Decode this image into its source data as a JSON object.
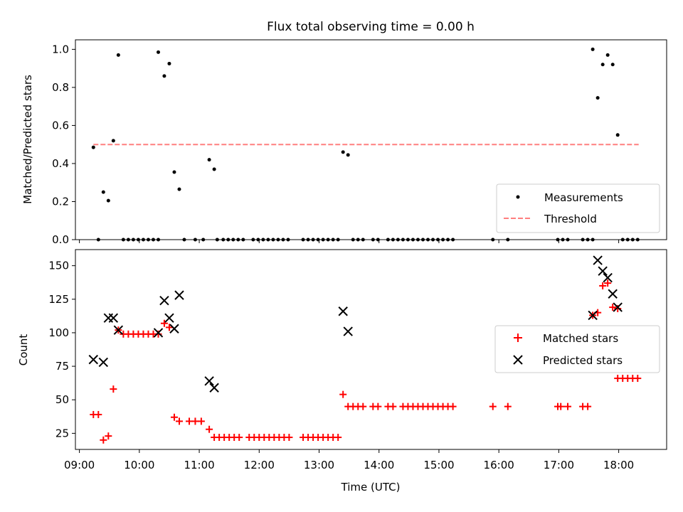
{
  "title": "Flux total observing time = 0.00 h",
  "chart_data": [
    {
      "type": "scatter",
      "xlabel": "",
      "ylabel": "Matched/Predicted stars",
      "xlim": [
        "08:56",
        "18:48"
      ],
      "ylim": [
        0,
        1.05
      ],
      "yticks": [
        "0.0",
        "0.2",
        "0.4",
        "0.6",
        "0.8",
        "1.0"
      ],
      "grid": false,
      "legend_position": "lower-right",
      "series": [
        {
          "name": "Measurements",
          "kind": "scatter",
          "color": "#000000",
          "points": [
            [
              "09:14",
              0.485
            ],
            [
              "09:19",
              0.0
            ],
            [
              "09:24",
              0.25
            ],
            [
              "09:29",
              0.205
            ],
            [
              "09:34",
              0.52
            ],
            [
              "09:39",
              0.97
            ],
            [
              "09:44",
              0.0
            ],
            [
              "09:49",
              0.0
            ],
            [
              "09:54",
              0.0
            ],
            [
              "09:59",
              0.0
            ],
            [
              "10:04",
              0.0
            ],
            [
              "10:09",
              0.0
            ],
            [
              "10:14",
              0.0
            ],
            [
              "10:19",
              0.0
            ],
            [
              "10:19",
              0.985
            ],
            [
              "10:25",
              0.86
            ],
            [
              "10:30",
              0.925
            ],
            [
              "10:35",
              0.355
            ],
            [
              "10:40",
              0.265
            ],
            [
              "10:45",
              0.0
            ],
            [
              "10:56",
              0.0
            ],
            [
              "11:04",
              0.0
            ],
            [
              "11:10",
              0.42
            ],
            [
              "11:15",
              0.37
            ],
            [
              "11:18",
              0.0
            ],
            [
              "11:24",
              0.0
            ],
            [
              "11:29",
              0.0
            ],
            [
              "11:34",
              0.0
            ],
            [
              "11:39",
              0.0
            ],
            [
              "11:44",
              0.0
            ],
            [
              "11:54",
              0.0
            ],
            [
              "11:59",
              0.0
            ],
            [
              "12:04",
              0.0
            ],
            [
              "12:09",
              0.0
            ],
            [
              "12:14",
              0.0
            ],
            [
              "12:19",
              0.0
            ],
            [
              "12:24",
              0.0
            ],
            [
              "12:29",
              0.0
            ],
            [
              "12:44",
              0.0
            ],
            [
              "12:49",
              0.0
            ],
            [
              "12:54",
              0.0
            ],
            [
              "12:59",
              0.0
            ],
            [
              "13:04",
              0.0
            ],
            [
              "13:09",
              0.0
            ],
            [
              "13:14",
              0.0
            ],
            [
              "13:19",
              0.0
            ],
            [
              "13:24",
              0.46
            ],
            [
              "13:29",
              0.445
            ],
            [
              "13:34",
              0.0
            ],
            [
              "13:39",
              0.0
            ],
            [
              "13:44",
              0.0
            ],
            [
              "13:54",
              0.0
            ],
            [
              "13:59",
              0.0
            ],
            [
              "14:09",
              0.0
            ],
            [
              "14:14",
              0.0
            ],
            [
              "14:19",
              0.0
            ],
            [
              "14:24",
              0.0
            ],
            [
              "14:29",
              0.0
            ],
            [
              "14:34",
              0.0
            ],
            [
              "14:39",
              0.0
            ],
            [
              "14:44",
              0.0
            ],
            [
              "14:49",
              0.0
            ],
            [
              "14:54",
              0.0
            ],
            [
              "14:59",
              0.0
            ],
            [
              "15:04",
              0.0
            ],
            [
              "15:09",
              0.0
            ],
            [
              "15:14",
              0.0
            ],
            [
              "15:54",
              0.0
            ],
            [
              "16:09",
              0.0
            ],
            [
              "16:59",
              0.0
            ],
            [
              "17:04",
              0.0
            ],
            [
              "17:09",
              0.0
            ],
            [
              "17:24",
              0.0
            ],
            [
              "17:29",
              0.0
            ],
            [
              "17:34",
              0.0
            ],
            [
              "17:34",
              1.0
            ],
            [
              "17:39",
              0.745
            ],
            [
              "17:44",
              0.92
            ],
            [
              "17:49",
              0.97
            ],
            [
              "17:54",
              0.92
            ],
            [
              "17:59",
              0.55
            ],
            [
              "18:04",
              0.0
            ],
            [
              "18:09",
              0.0
            ],
            [
              "18:14",
              0.0
            ],
            [
              "18:19",
              0.0
            ]
          ]
        },
        {
          "name": "Threshold",
          "kind": "line",
          "style": "dashed",
          "color": "#ff7f7f",
          "points": [
            [
              "09:14",
              0.5
            ],
            [
              "18:20",
              0.5
            ]
          ]
        }
      ]
    },
    {
      "type": "scatter",
      "xlabel": "Time (UTC)",
      "ylabel": "Count",
      "xlim": [
        "08:56",
        "18:48"
      ],
      "ylim": [
        13,
        162
      ],
      "yticks": [
        "25",
        "50",
        "75",
        "100",
        "125",
        "150"
      ],
      "xticks": [
        "09:00",
        "10:00",
        "11:00",
        "12:00",
        "13:00",
        "14:00",
        "15:00",
        "16:00",
        "17:00",
        "18:00"
      ],
      "grid": false,
      "legend_position": "right",
      "series": [
        {
          "name": "Matched stars",
          "marker": "+",
          "color": "#ff0000",
          "points": [
            [
              "09:14",
              39
            ],
            [
              "09:19",
              39
            ],
            [
              "09:24",
              20
            ],
            [
              "09:29",
              23
            ],
            [
              "09:34",
              58
            ],
            [
              "09:39",
              102
            ],
            [
              "09:44",
              99
            ],
            [
              "09:49",
              99
            ],
            [
              "09:54",
              99
            ],
            [
              "09:59",
              99
            ],
            [
              "10:04",
              99
            ],
            [
              "10:09",
              99
            ],
            [
              "10:14",
              99
            ],
            [
              "10:19",
              99
            ],
            [
              "10:25",
              107
            ],
            [
              "10:30",
              104
            ],
            [
              "10:35",
              37
            ],
            [
              "10:40",
              34
            ],
            [
              "10:50",
              34
            ],
            [
              "10:56",
              34
            ],
            [
              "11:02",
              34
            ],
            [
              "11:10",
              28
            ],
            [
              "11:15",
              22
            ],
            [
              "11:20",
              22
            ],
            [
              "11:25",
              22
            ],
            [
              "11:30",
              22
            ],
            [
              "11:35",
              22
            ],
            [
              "11:40",
              22
            ],
            [
              "11:50",
              22
            ],
            [
              "11:55",
              22
            ],
            [
              "12:00",
              22
            ],
            [
              "12:05",
              22
            ],
            [
              "12:10",
              22
            ],
            [
              "12:15",
              22
            ],
            [
              "12:20",
              22
            ],
            [
              "12:25",
              22
            ],
            [
              "12:30",
              22
            ],
            [
              "12:44",
              22
            ],
            [
              "12:49",
              22
            ],
            [
              "12:54",
              22
            ],
            [
              "12:59",
              22
            ],
            [
              "13:04",
              22
            ],
            [
              "13:09",
              22
            ],
            [
              "13:14",
              22
            ],
            [
              "13:19",
              22
            ],
            [
              "13:24",
              54
            ],
            [
              "13:29",
              45
            ],
            [
              "13:34",
              45
            ],
            [
              "13:39",
              45
            ],
            [
              "13:44",
              45
            ],
            [
              "13:54",
              45
            ],
            [
              "13:59",
              45
            ],
            [
              "14:09",
              45
            ],
            [
              "14:14",
              45
            ],
            [
              "14:24",
              45
            ],
            [
              "14:29",
              45
            ],
            [
              "14:34",
              45
            ],
            [
              "14:39",
              45
            ],
            [
              "14:44",
              45
            ],
            [
              "14:49",
              45
            ],
            [
              "14:54",
              45
            ],
            [
              "14:59",
              45
            ],
            [
              "15:04",
              45
            ],
            [
              "15:09",
              45
            ],
            [
              "15:14",
              45
            ],
            [
              "15:54",
              45
            ],
            [
              "16:09",
              45
            ],
            [
              "16:59",
              45
            ],
            [
              "17:02",
              45
            ],
            [
              "17:09",
              45
            ],
            [
              "17:24",
              45
            ],
            [
              "17:29",
              45
            ],
            [
              "17:34",
              113
            ],
            [
              "17:39",
              115
            ],
            [
              "17:44",
              135
            ],
            [
              "17:49",
              137
            ],
            [
              "17:54",
              119
            ],
            [
              "17:59",
              118
            ],
            [
              "17:59",
              66
            ],
            [
              "18:04",
              66
            ],
            [
              "18:09",
              66
            ],
            [
              "18:14",
              66
            ],
            [
              "18:19",
              66
            ]
          ]
        },
        {
          "name": "Predicted stars",
          "marker": "x",
          "color": "#000000",
          "points": [
            [
              "09:14",
              80
            ],
            [
              "09:24",
              78
            ],
            [
              "09:29",
              111
            ],
            [
              "09:34",
              111
            ],
            [
              "09:39",
              102
            ],
            [
              "10:19",
              100
            ],
            [
              "10:25",
              124
            ],
            [
              "10:30",
              111
            ],
            [
              "10:35",
              103
            ],
            [
              "10:40",
              128
            ],
            [
              "11:10",
              64
            ],
            [
              "11:15",
              59
            ],
            [
              "13:24",
              116
            ],
            [
              "13:29",
              101
            ],
            [
              "17:34",
              113
            ],
            [
              "17:39",
              154
            ],
            [
              "17:44",
              146
            ],
            [
              "17:49",
              141
            ],
            [
              "17:54",
              129
            ],
            [
              "17:59",
              119
            ]
          ]
        }
      ]
    }
  ]
}
